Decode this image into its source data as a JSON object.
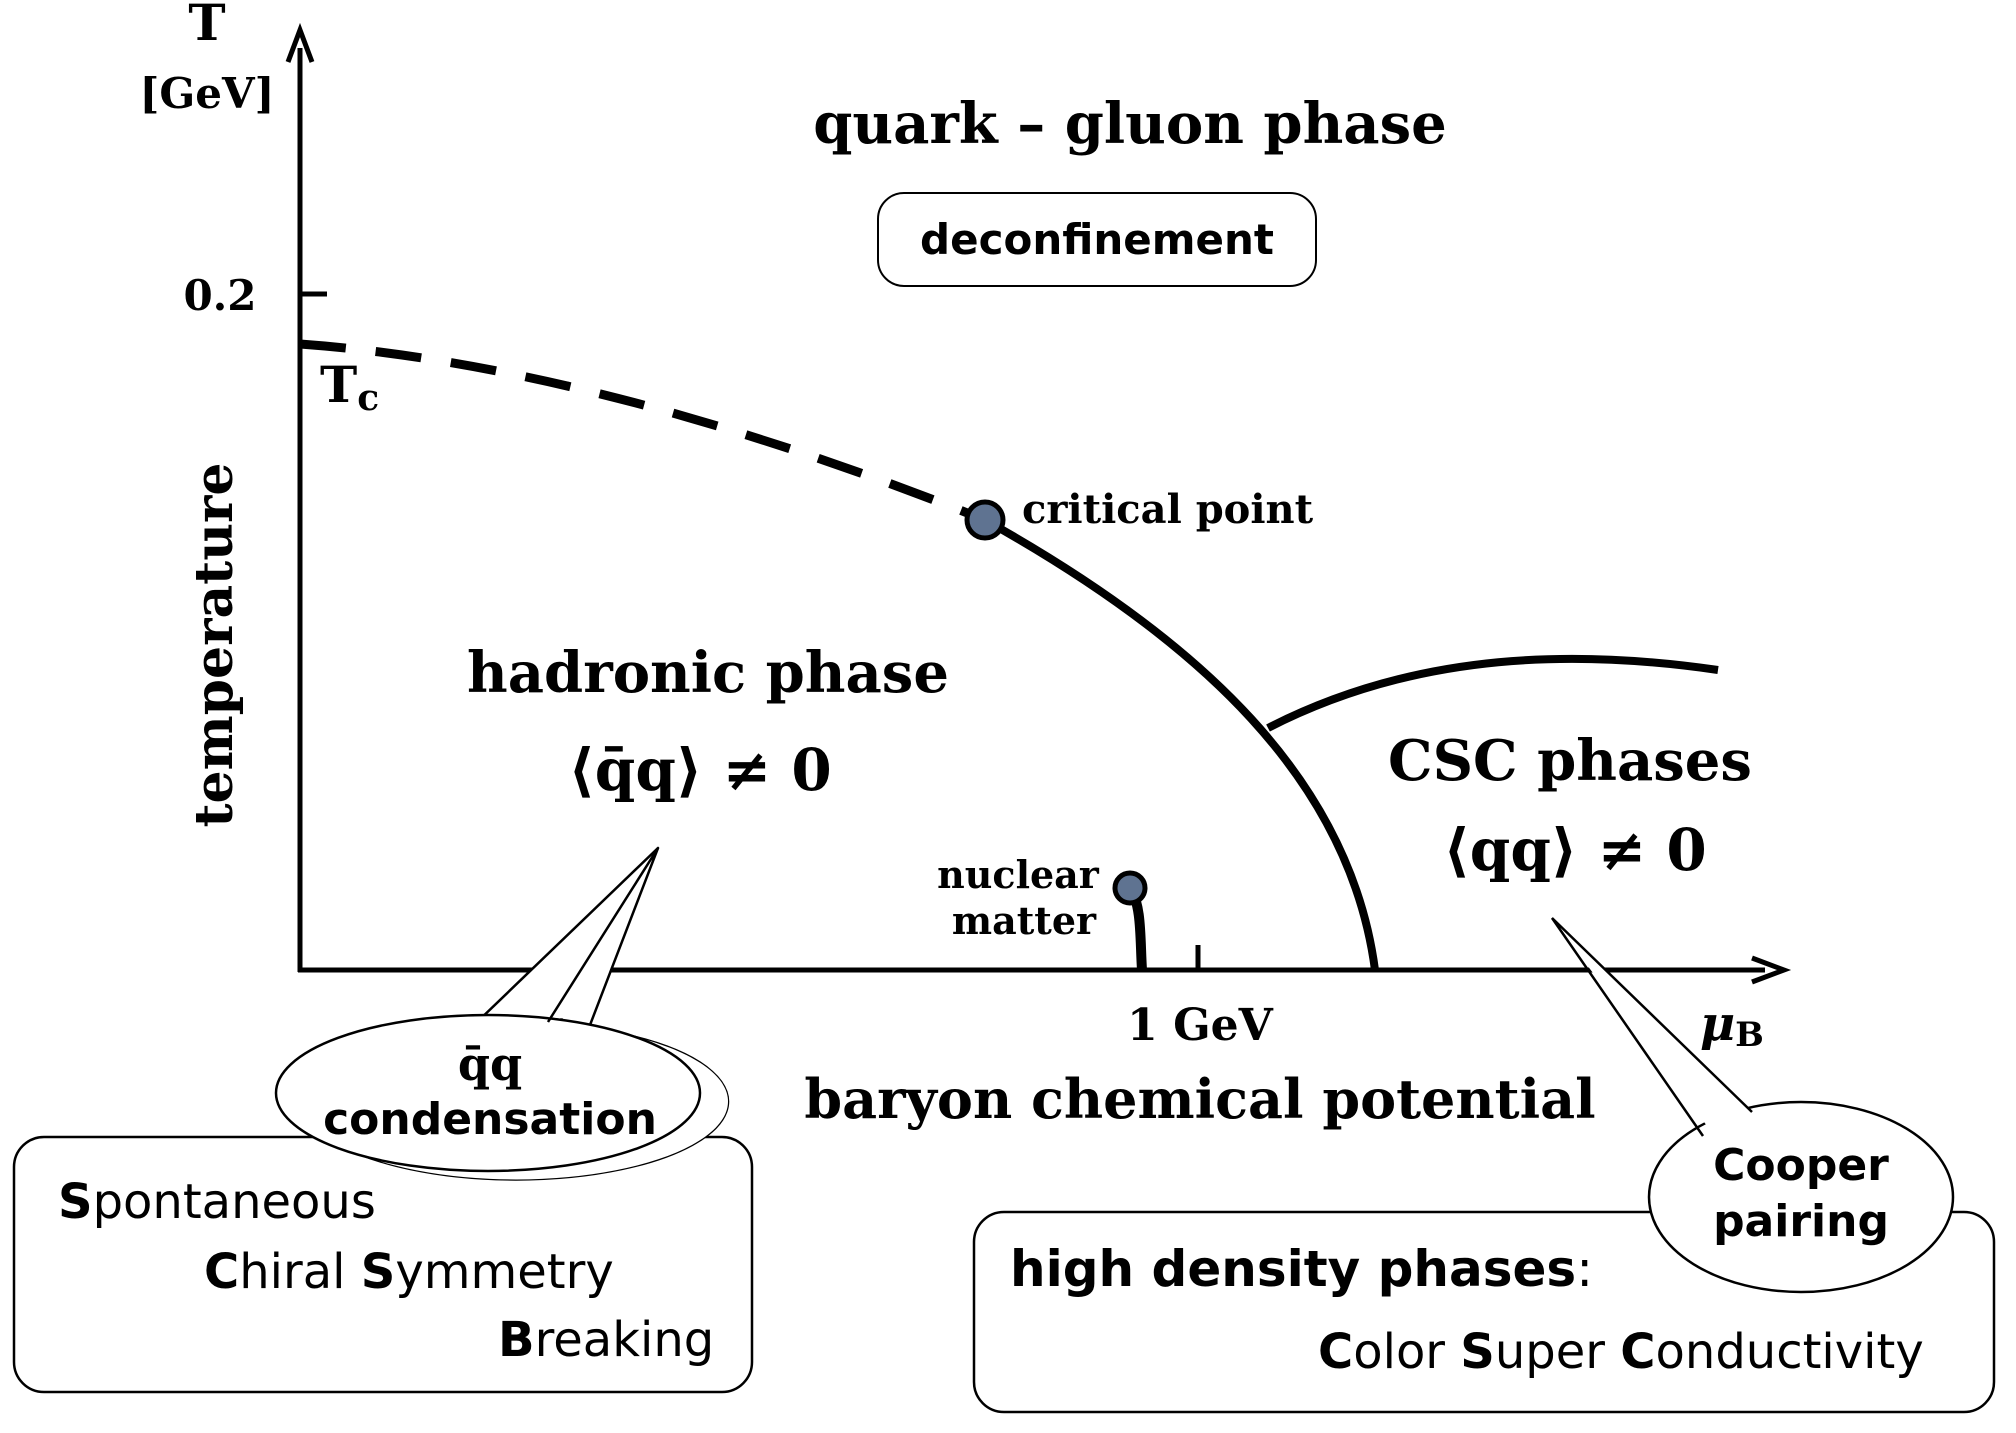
{
  "axes": {
    "y_symbol": "T",
    "y_unit": "[GeV]",
    "y_tick": "0.2",
    "y_label": "temperature",
    "tc_label": "T",
    "tc_sub": "c",
    "x_tick": "1 GeV",
    "x_symbol": "μ",
    "x_sub": "B",
    "x_label": "baryon chemical potential"
  },
  "phases": {
    "qgp_title": "quark – gluon phase",
    "deconfinement": "deconfinement",
    "hadronic_title": "hadronic phase",
    "hadronic_cond": "⟨q̄q⟩ ≠ 0",
    "csc_title": "CSC phases",
    "csc_cond": "⟨qq⟩ ≠ 0"
  },
  "points": {
    "critical": "critical point",
    "nuclear_1": "nuclear",
    "nuclear_2": "matter"
  },
  "callouts": {
    "qq_line1": "q̄q",
    "qq_line2": "condensation",
    "scsb": [
      {
        "bold": "S",
        "rest": "pontaneous"
      },
      {
        "bold": "C",
        "rest": "hiral "
      },
      {
        "bold": "S",
        "rest": "ymmetry"
      },
      {
        "bold": "B",
        "rest": "reaking"
      }
    ],
    "cooper_1": "Cooper",
    "cooper_2": "pairing",
    "hd_title": "high density phases",
    "hd_colon": ":",
    "csc_words": [
      {
        "bold": "C",
        "rest": "olor "
      },
      {
        "bold": "S",
        "rest": "uper "
      },
      {
        "bold": "C",
        "rest": "onductivity"
      }
    ]
  },
  "colors": {
    "ink": "#000000",
    "point_fill": "#5f7391"
  }
}
